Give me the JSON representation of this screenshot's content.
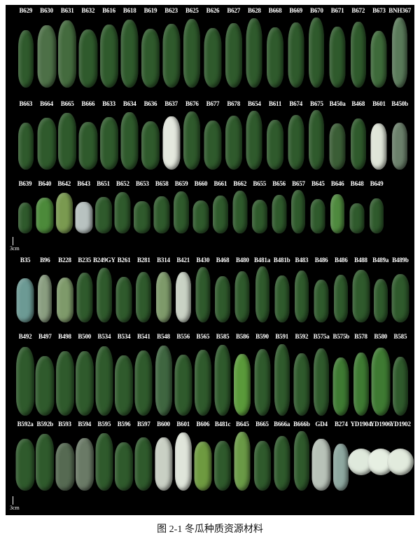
{
  "figure": {
    "caption": "图 2-1  冬瓜种质资源材料",
    "scale_label": "3cm",
    "default_color": "#2f5a2c",
    "rows": [
      {
        "labels": [
          "B629",
          "B630",
          "B631",
          "B632",
          "B616",
          "B618",
          "B619",
          "B623",
          "B625",
          "B626",
          "B627",
          "B628",
          "B668",
          "B669",
          "B670",
          "B671",
          "B672",
          "B673",
          "BNH367"
        ],
        "colors": {
          "B630": "#4d7047",
          "B631": "#446b3e",
          "B673": "#3e6a3a",
          "BNH367": "#5a7a5a"
        }
      },
      {
        "labels": [
          "B663",
          "B664",
          "B665",
          "B666",
          "B633",
          "B634",
          "B636",
          "B637",
          "B676",
          "B677",
          "B678",
          "B654",
          "B611",
          "B674",
          "B675",
          "B450a",
          "B468",
          "B601",
          "B450b"
        ],
        "colors": {
          "B637": "#e4e8de",
          "B601": "#dfe5d8",
          "B450b": "#6b806b",
          "B450a": "#3b5e36"
        }
      },
      {
        "labels": [
          "B639",
          "B640",
          "B642",
          "B643",
          "B651",
          "B652",
          "B653",
          "B658",
          "B659",
          "B660",
          "B661",
          "B662",
          "B655",
          "B656",
          "B657",
          "B645",
          "B646",
          "B648",
          "B649"
        ],
        "colors": {
          "B643": "#b8c2c0",
          "B640": "#4c8a3a",
          "B642": "#7a9a50",
          "B646": "#4f8a3e"
        }
      },
      {
        "labels": [
          "B35",
          "B96",
          "B228",
          "B235",
          "B249GY",
          "B261",
          "B281",
          "B314",
          "B421",
          "B430",
          "B468",
          "B480",
          "B481a",
          "B481b",
          "B483",
          "B486",
          "B486",
          "B488",
          "B489a",
          "B489b"
        ],
        "colors": {
          "B35": "#6c9a94",
          "B96": "#8a9e80",
          "B228": "#7e9a6a",
          "B314": "#7e9a6a",
          "B421": "#c9d2c4"
        }
      },
      {
        "labels": [
          "B492",
          "B497",
          "B498",
          "B500",
          "B534",
          "B534",
          "B541",
          "B548",
          "B556",
          "B565",
          "B585",
          "B586",
          "B590",
          "B591",
          "B592",
          "B575a",
          "B575b",
          "B578",
          "B580",
          "B585"
        ],
        "colors": {
          "B586": "#5a9a3a",
          "B548": "#3f6640",
          "B578": "#3e7a32",
          "B580": "#3e7a32",
          "B575b": "#3e7a32"
        }
      },
      {
        "labels": [
          "B592a",
          "B592b",
          "B593",
          "B594",
          "B595",
          "B596",
          "B597",
          "B600",
          "B601",
          "B606",
          "B481c",
          "B645",
          "B665",
          "B666a",
          "B666b",
          "GD4",
          "B274",
          "YD1904",
          "YD1906",
          "YD1902"
        ],
        "colors": {
          "B601": "#dfe5da",
          "B600": "#c9d0c4",
          "B606": "#6e9a40",
          "B645": "#6a9a46",
          "GD4": "#b8c2b8",
          "B274": "#8ea8a0",
          "YD1904": "#dfe9dc",
          "YD1906": "#e6efe2",
          "YD1902": "#e2ebdd",
          "B593": "#566a52",
          "B594": "#6a7a66"
        }
      }
    ]
  }
}
